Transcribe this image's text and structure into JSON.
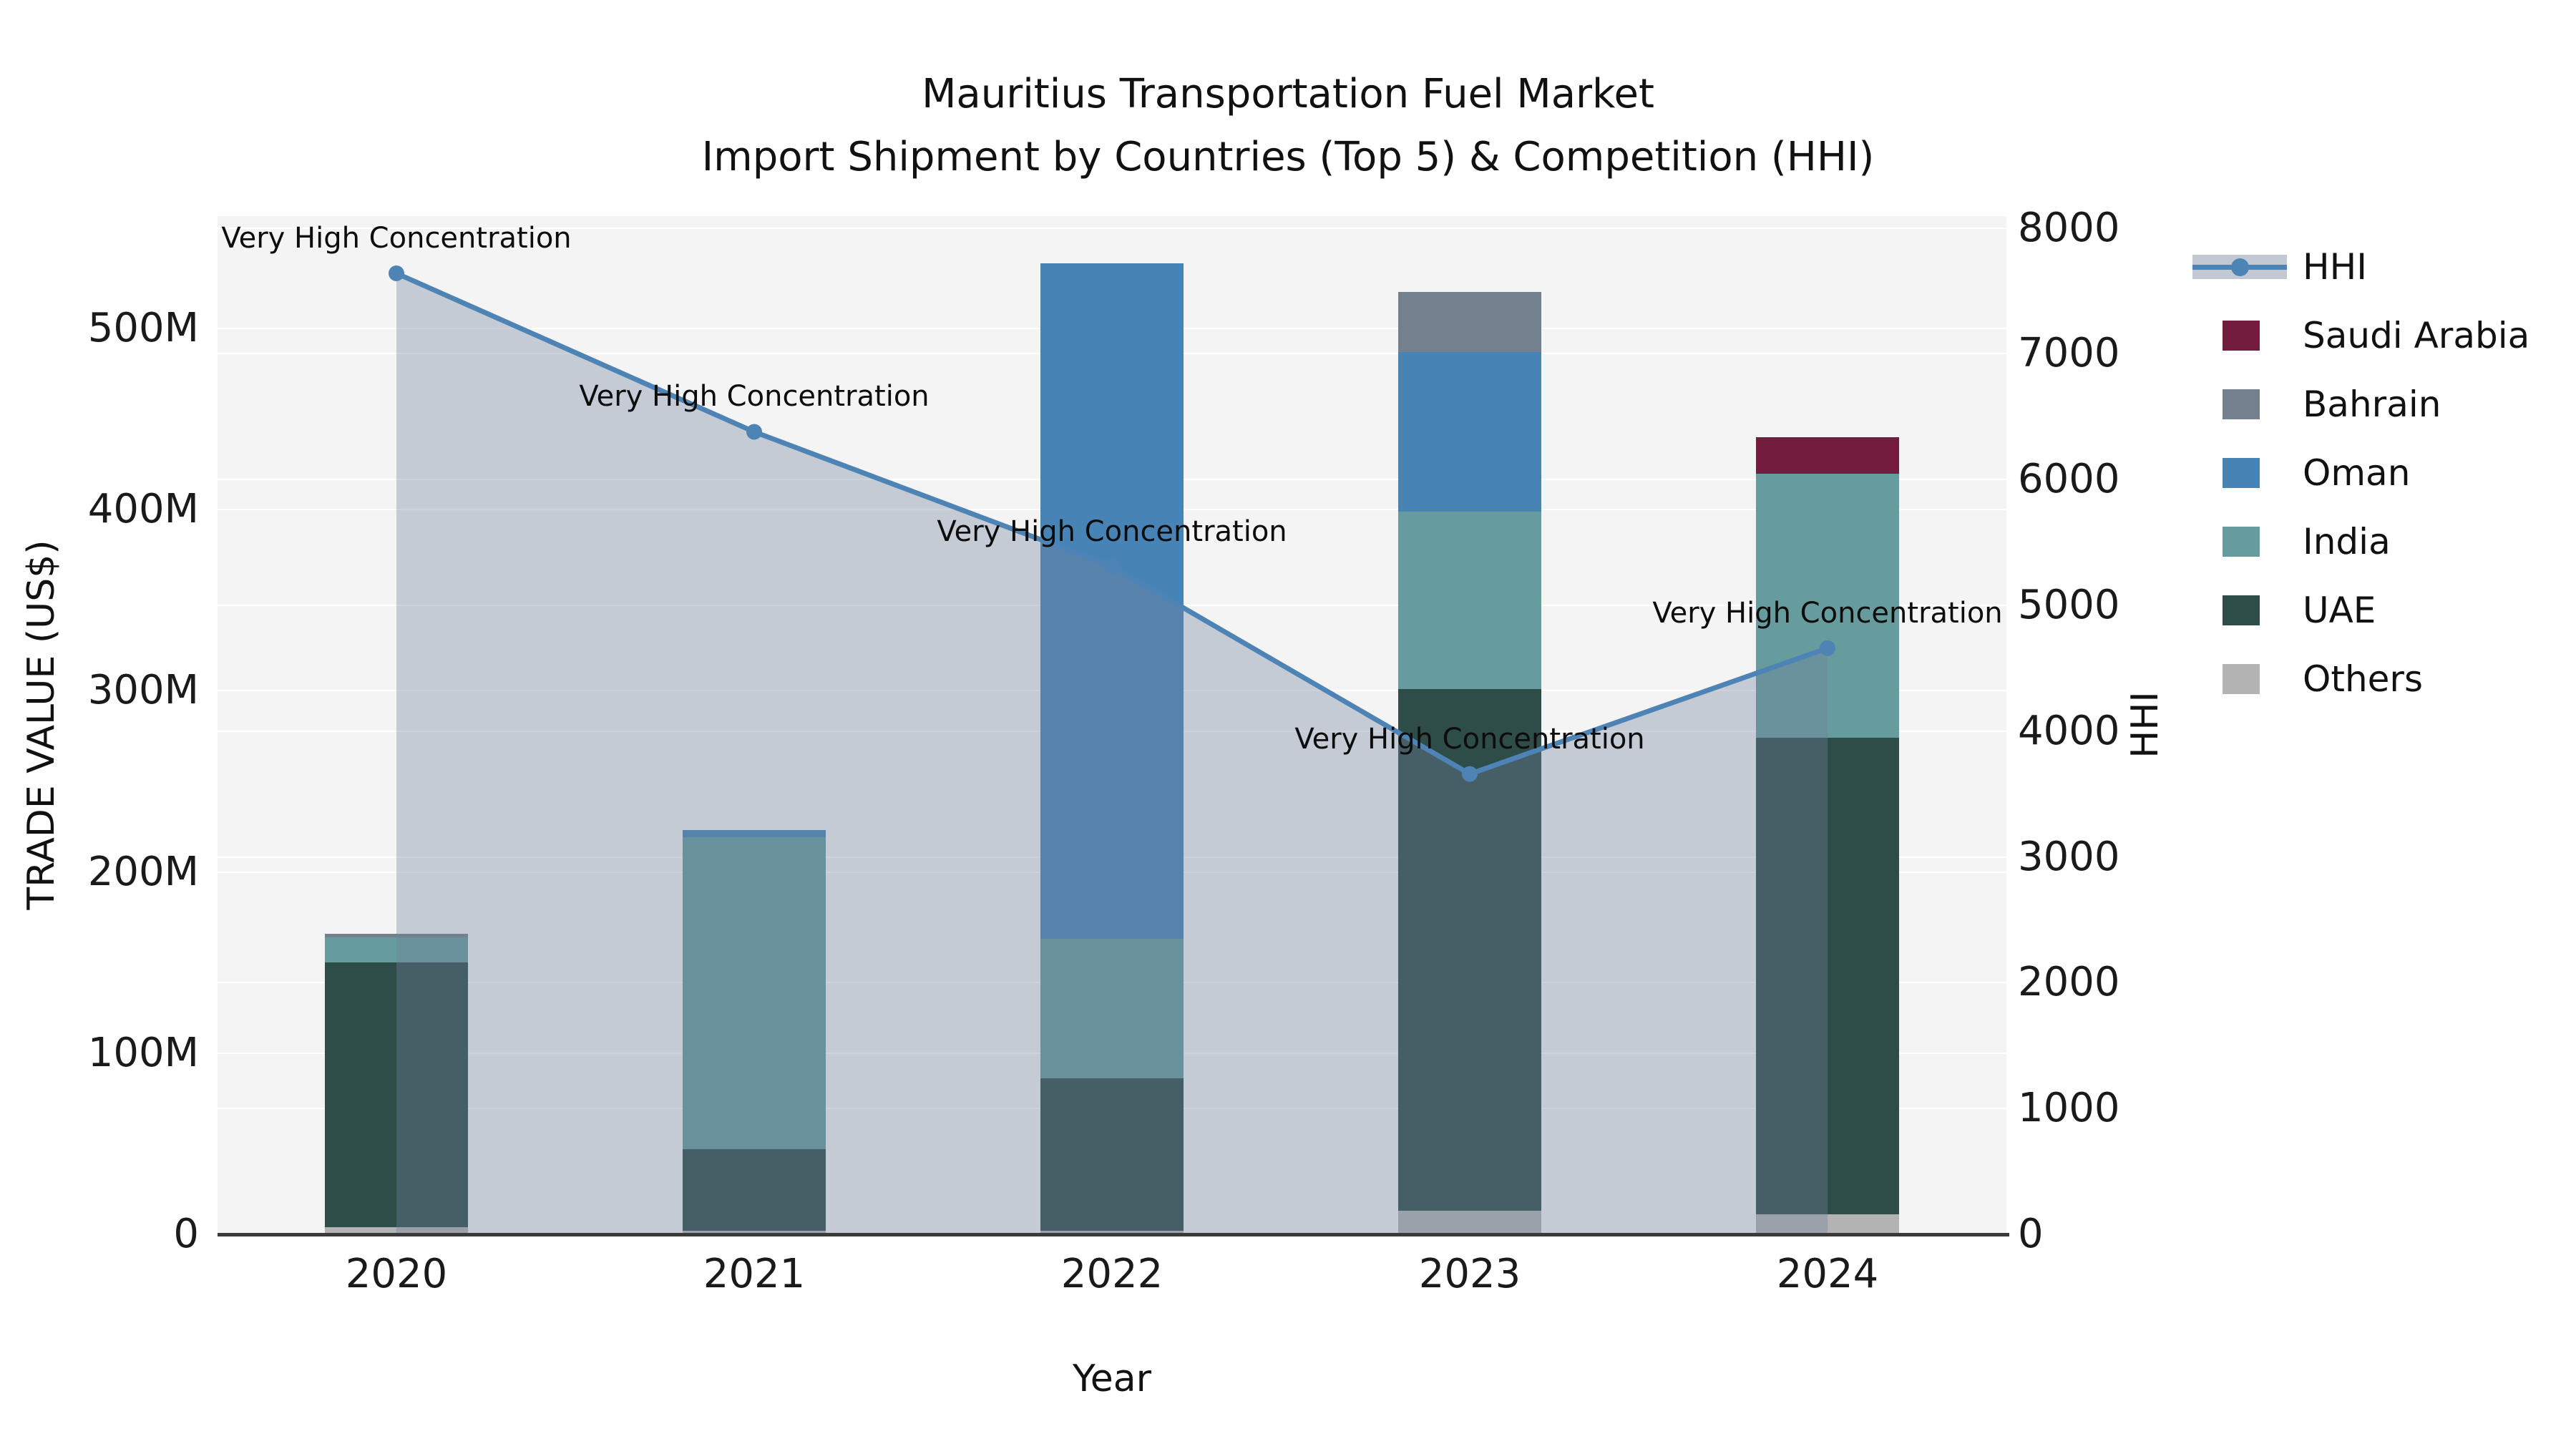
{
  "title": {
    "line1": "Mauritius Transportation Fuel Market",
    "line2": "Import Shipment by Countries (Top 5) & Competition (HHI)"
  },
  "axes": {
    "x": {
      "label": "Year",
      "ticks": [
        "2020",
        "2021",
        "2022",
        "2023",
        "2024"
      ]
    },
    "left": {
      "label": "TRADE VALUE (US$)",
      "ticks": [
        {
          "label": "0",
          "value": 0
        },
        {
          "label": "100M",
          "value": 100
        },
        {
          "label": "200M",
          "value": 200
        },
        {
          "label": "300M",
          "value": 300
        },
        {
          "label": "400M",
          "value": 400
        },
        {
          "label": "500M",
          "value": 500
        }
      ]
    },
    "right": {
      "label": "HHI",
      "ticks": [
        {
          "label": "0",
          "value": 0
        },
        {
          "label": "1000",
          "value": 1000
        },
        {
          "label": "2000",
          "value": 2000
        },
        {
          "label": "3000",
          "value": 3000
        },
        {
          "label": "4000",
          "value": 4000
        },
        {
          "label": "5000",
          "value": 5000
        },
        {
          "label": "6000",
          "value": 6000
        },
        {
          "label": "7000",
          "value": 7000
        },
        {
          "label": "8000",
          "value": 8000
        }
      ]
    }
  },
  "legend": {
    "items": [
      {
        "label": "HHI",
        "type": "line",
        "color": "#4d84b5",
        "band_color": "#c3c9d4"
      },
      {
        "label": "Saudi Arabia",
        "type": "patch",
        "color": "#731c3e"
      },
      {
        "label": "Bahrain",
        "type": "patch",
        "color": "#73808d"
      },
      {
        "label": "Oman",
        "type": "patch",
        "color": "#4783b5"
      },
      {
        "label": "India",
        "type": "patch",
        "color": "#669c9d"
      },
      {
        "label": "UAE",
        "type": "patch",
        "color": "#2e4c48"
      },
      {
        "label": "Others",
        "type": "patch",
        "color": "#b3b3b3"
      }
    ]
  },
  "chart_data": {
    "type": "combo",
    "subtype": [
      "stacked-bar",
      "line",
      "area"
    ],
    "title": "Mauritius Transportation Fuel Market — Import Shipment by Countries (Top 5) & Competition (HHI)",
    "categories": [
      "2020",
      "2021",
      "2022",
      "2023",
      "2024"
    ],
    "bar_unit": "US$ millions (trade value)",
    "stack_order_bottom_to_top": [
      "Others",
      "UAE",
      "India",
      "Oman",
      "Bahrain",
      "Saudi Arabia"
    ],
    "series": [
      {
        "name": "Others",
        "color": "#b3b3b3",
        "values": [
          4,
          2,
          2,
          13,
          11
        ]
      },
      {
        "name": "UAE",
        "color": "#2e4c48",
        "values": [
          146,
          45,
          84,
          288,
          263
        ]
      },
      {
        "name": "India",
        "color": "#669c9d",
        "values": [
          14,
          172,
          77,
          98,
          146
        ]
      },
      {
        "name": "Oman",
        "color": "#4783b5",
        "values": [
          0,
          4,
          373,
          88,
          0
        ]
      },
      {
        "name": "Bahrain",
        "color": "#73808d",
        "values": [
          2,
          0,
          0,
          33,
          0
        ]
      },
      {
        "name": "Saudi Arabia",
        "color": "#731c3e",
        "values": [
          0,
          0,
          0,
          0,
          20
        ]
      }
    ],
    "line": {
      "name": "HHI",
      "color": "#4d84b5",
      "marker": "circle",
      "area_fill": true,
      "area_fill_color": "rgba(113,131,156,0.36)",
      "values": [
        7640,
        6380,
        5310,
        3660,
        4660
      ],
      "annotations": [
        "Very High Concentration",
        "Very High Concentration",
        "Very High Concentration",
        "Very High Concentration",
        "Very High Concentration"
      ]
    },
    "axis_ranges": {
      "left_trade_value_M": [
        0,
        562
      ],
      "right_hhi": [
        0,
        8095
      ]
    },
    "xlabel": "Year",
    "ylabel_left": "TRADE VALUE (US$)",
    "ylabel_right": "HHI",
    "grid": true,
    "legend_position": "right"
  }
}
